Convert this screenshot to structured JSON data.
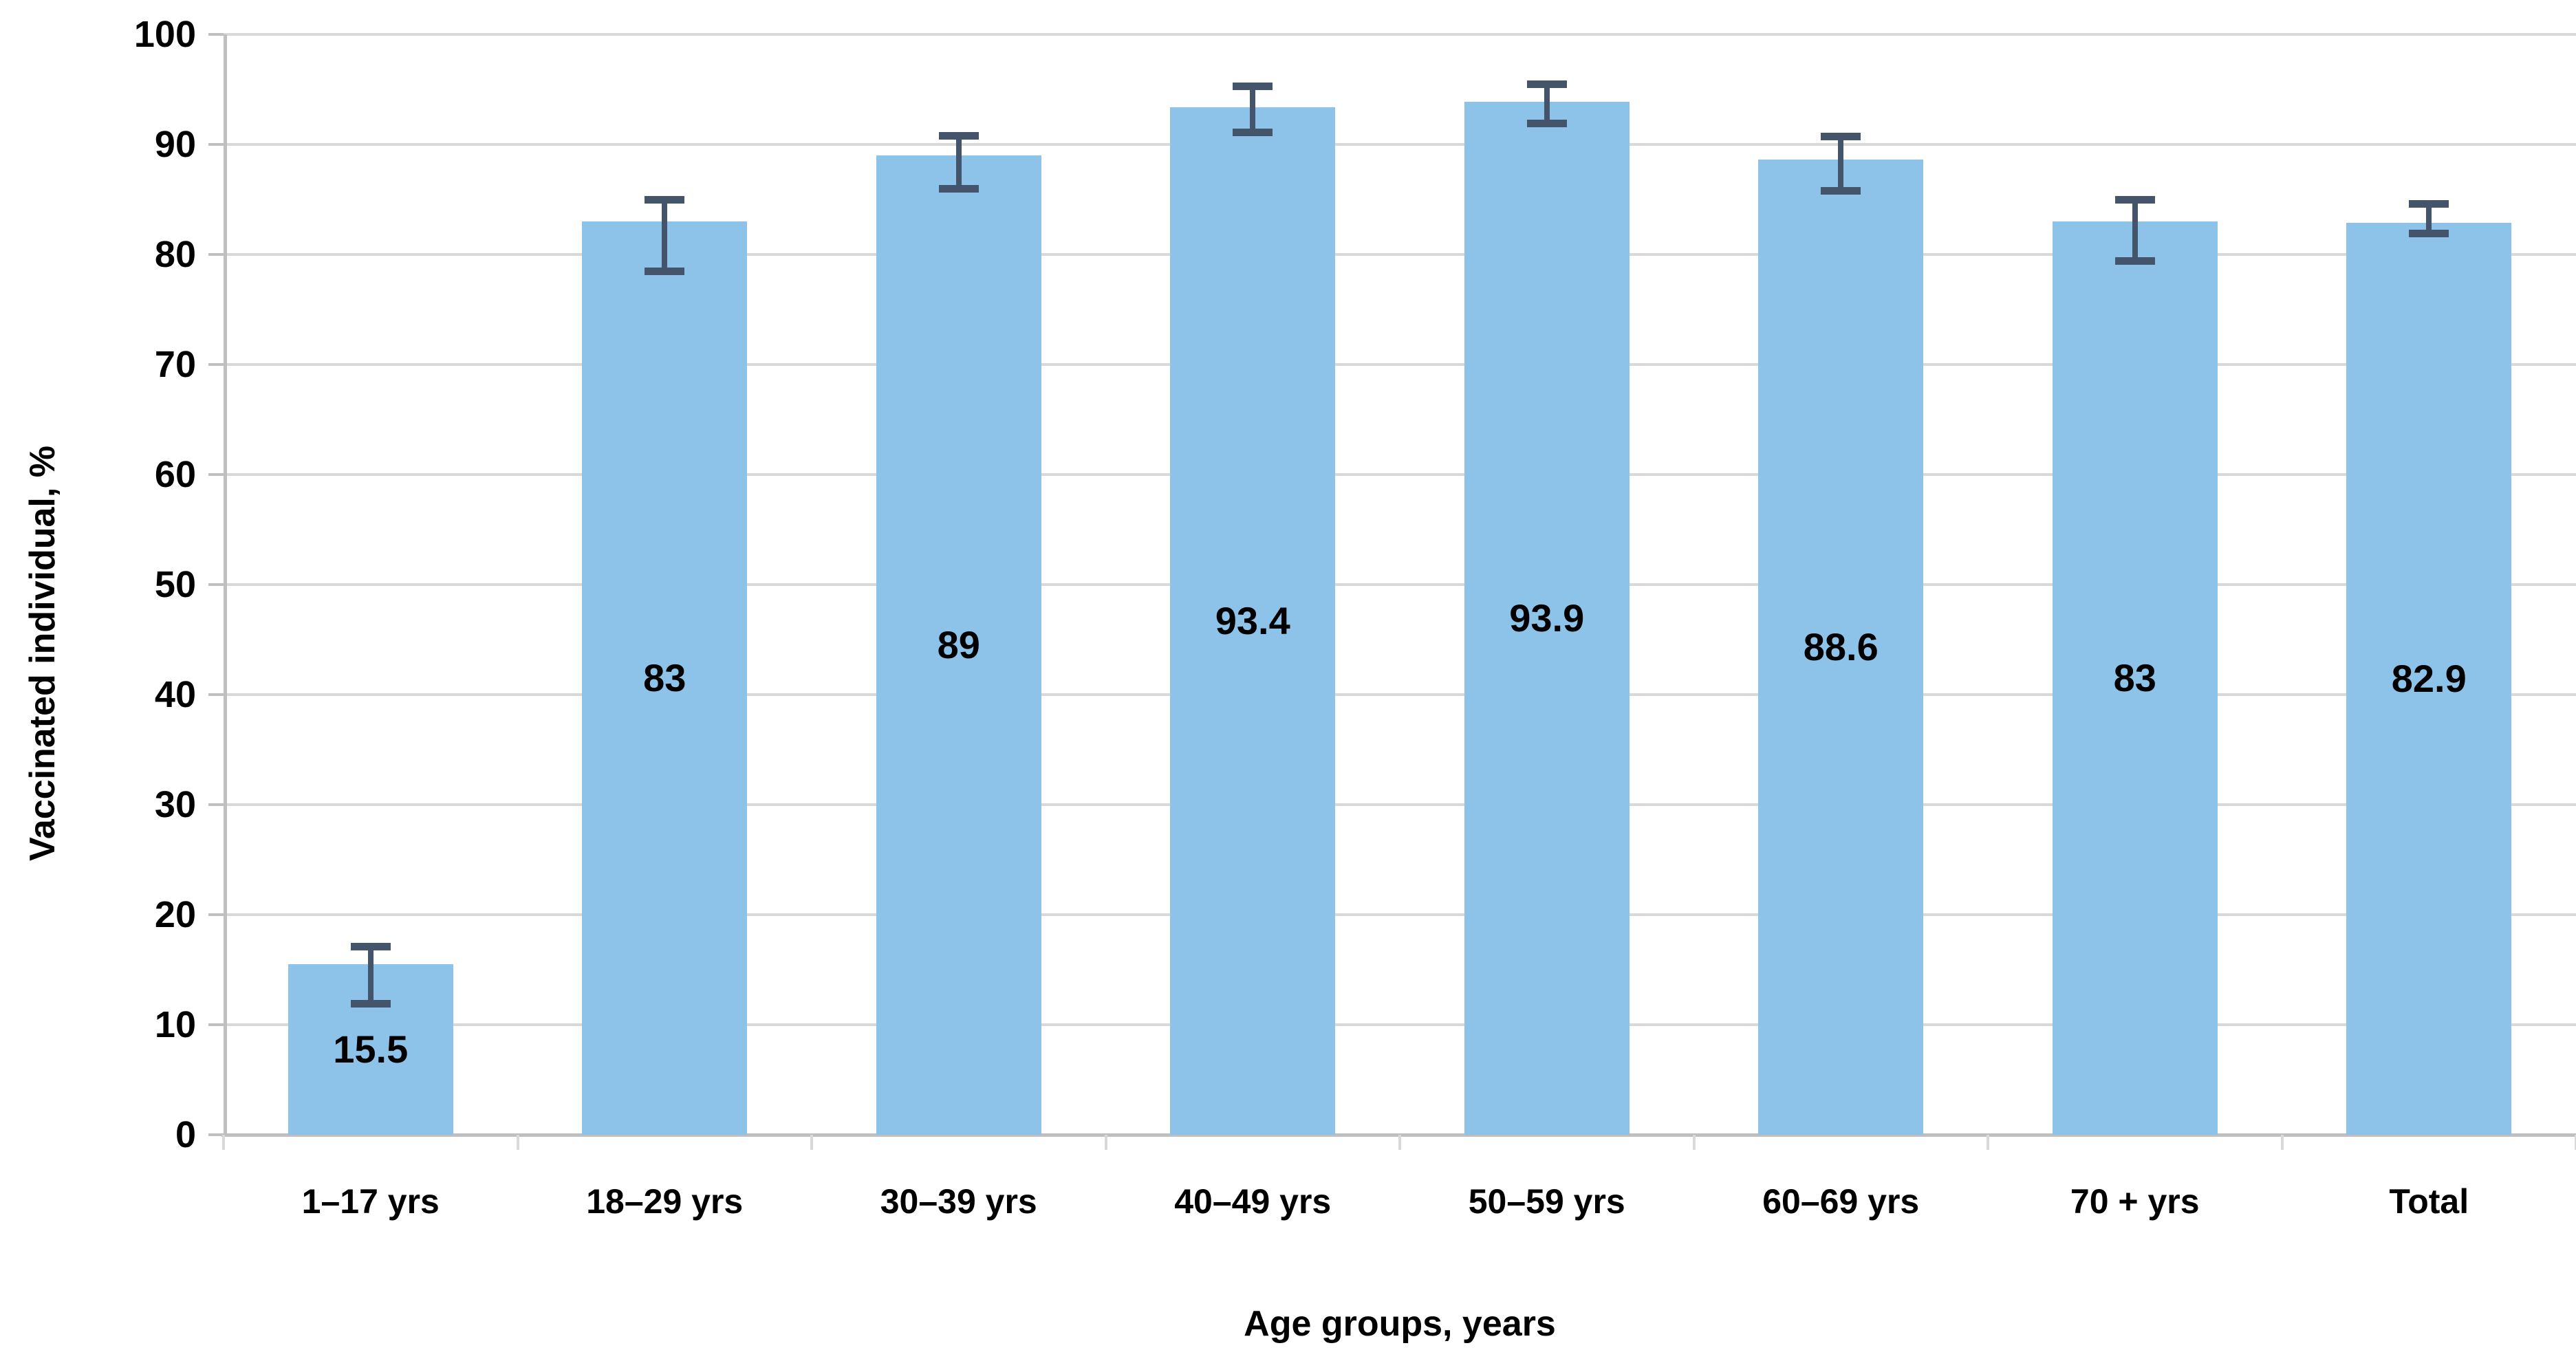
{
  "chart_data": {
    "type": "bar",
    "title": "",
    "xlabel": "Age groups, years",
    "ylabel": "Vaccinated individual, %",
    "ylim": [
      0,
      100
    ],
    "yticks": [
      0,
      10,
      20,
      30,
      40,
      50,
      60,
      70,
      80,
      90,
      100
    ],
    "grid": true,
    "legend": false,
    "legend_position": "none",
    "categories": [
      "1–17 yrs",
      "18–29 yrs",
      "30–39 yrs",
      "40–49 yrs",
      "50–59 yrs",
      "60–69 yrs",
      "70 + yrs",
      "Total"
    ],
    "series": [
      {
        "name": "Vaccinated individual, %",
        "values": [
          15.5,
          83,
          89,
          93.4,
          93.9,
          88.6,
          83,
          82.9
        ],
        "data_labels": [
          "15.5",
          "83",
          "89",
          "93.4",
          "93.9",
          "88.6",
          "83",
          "82.9"
        ],
        "error_low": [
          11.9,
          78.5,
          86.0,
          91.1,
          91.9,
          85.8,
          79.4,
          81.9
        ],
        "error_high": [
          17.1,
          85.0,
          90.8,
          95.3,
          95.5,
          90.7,
          85.0,
          84.6
        ]
      }
    ],
    "colors": {
      "bar_fill": "#8DC3E8",
      "error_bar": "#44546A",
      "gridline": "#D9D9D9",
      "axis_line": "#BFBFBF",
      "text": "#000000",
      "background": "#FFFFFF"
    }
  }
}
